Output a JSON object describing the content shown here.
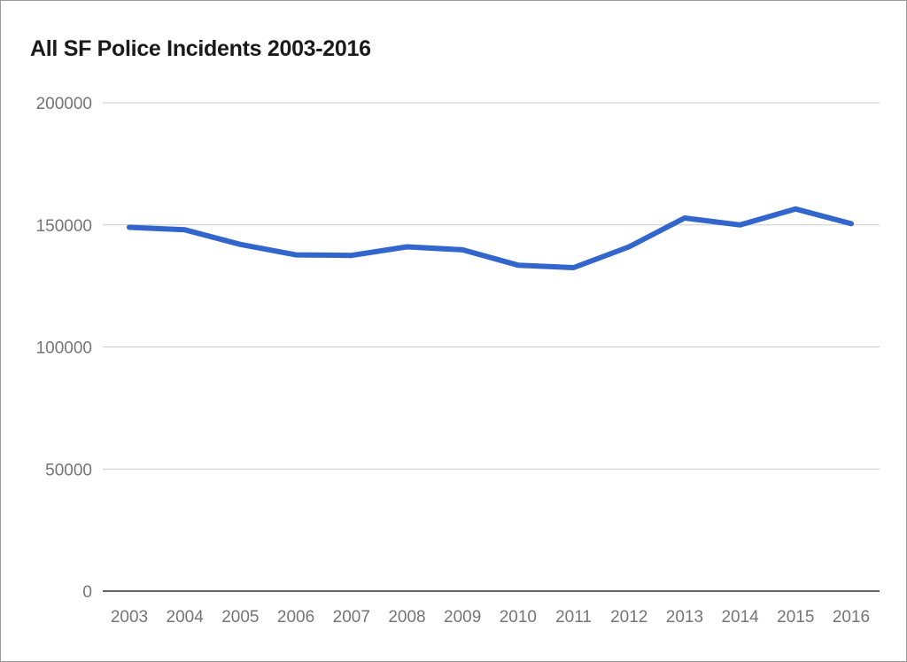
{
  "chart_data": {
    "type": "line",
    "title": "All SF Police Incidents 2003-2016",
    "x": [
      "2003",
      "2004",
      "2005",
      "2006",
      "2007",
      "2008",
      "2009",
      "2010",
      "2011",
      "2012",
      "2013",
      "2014",
      "2015",
      "2016"
    ],
    "series": [
      {
        "values": [
          149000,
          148000,
          142000,
          137700,
          137500,
          141000,
          139800,
          133500,
          132500,
          141000,
          152800,
          150000,
          156500,
          150500
        ],
        "color": "#3366cc"
      }
    ],
    "yticks": [
      "0",
      "50000",
      "100000",
      "150000",
      "200000"
    ],
    "ylim": [
      0,
      200000
    ],
    "grid": true,
    "legend": "none",
    "colors": {
      "line": "#3366cc",
      "grid": "#cccccc",
      "axis": "#333333",
      "tick_text": "#757575"
    }
  }
}
